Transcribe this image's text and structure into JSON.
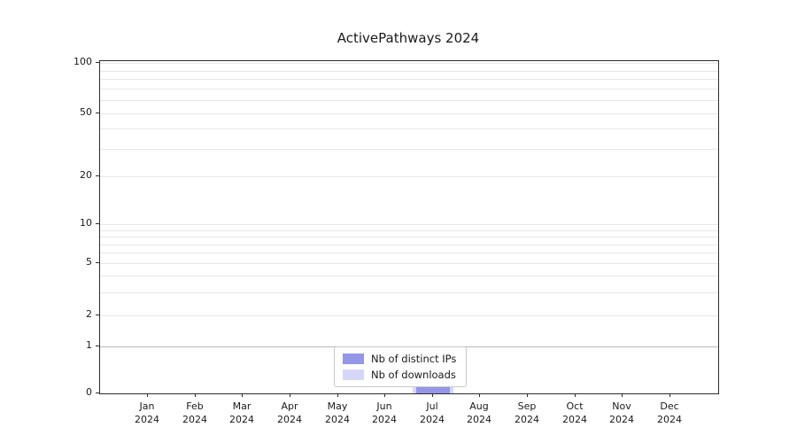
{
  "chart_data": {
    "type": "bar",
    "title": "ActivePathways 2024",
    "categories": [
      "Jan 2024",
      "Feb 2024",
      "Mar 2024",
      "Apr 2024",
      "May 2024",
      "Jun 2024",
      "Jul 2024",
      "Aug 2024",
      "Sep 2024",
      "Oct 2024",
      "Nov 2024",
      "Dec 2024"
    ],
    "series": [
      {
        "name": "Nb of distinct IPs",
        "color": "#9496e8",
        "values": [
          0,
          0,
          0,
          0,
          0,
          0,
          1,
          0,
          0,
          0,
          0,
          0
        ]
      },
      {
        "name": "Nb of downloads",
        "color": "#d6d7f7",
        "values": [
          0,
          0,
          0,
          0,
          0,
          0,
          1,
          0,
          0,
          0,
          0,
          0
        ]
      }
    ],
    "barmode": "overlay",
    "yscale": "symlog",
    "ylim": [
      0,
      100
    ],
    "y_ticks": [
      100,
      50,
      20,
      10,
      5,
      2,
      1,
      0
    ],
    "grid": "horizontal-minor",
    "legend_position": "lower center"
  }
}
